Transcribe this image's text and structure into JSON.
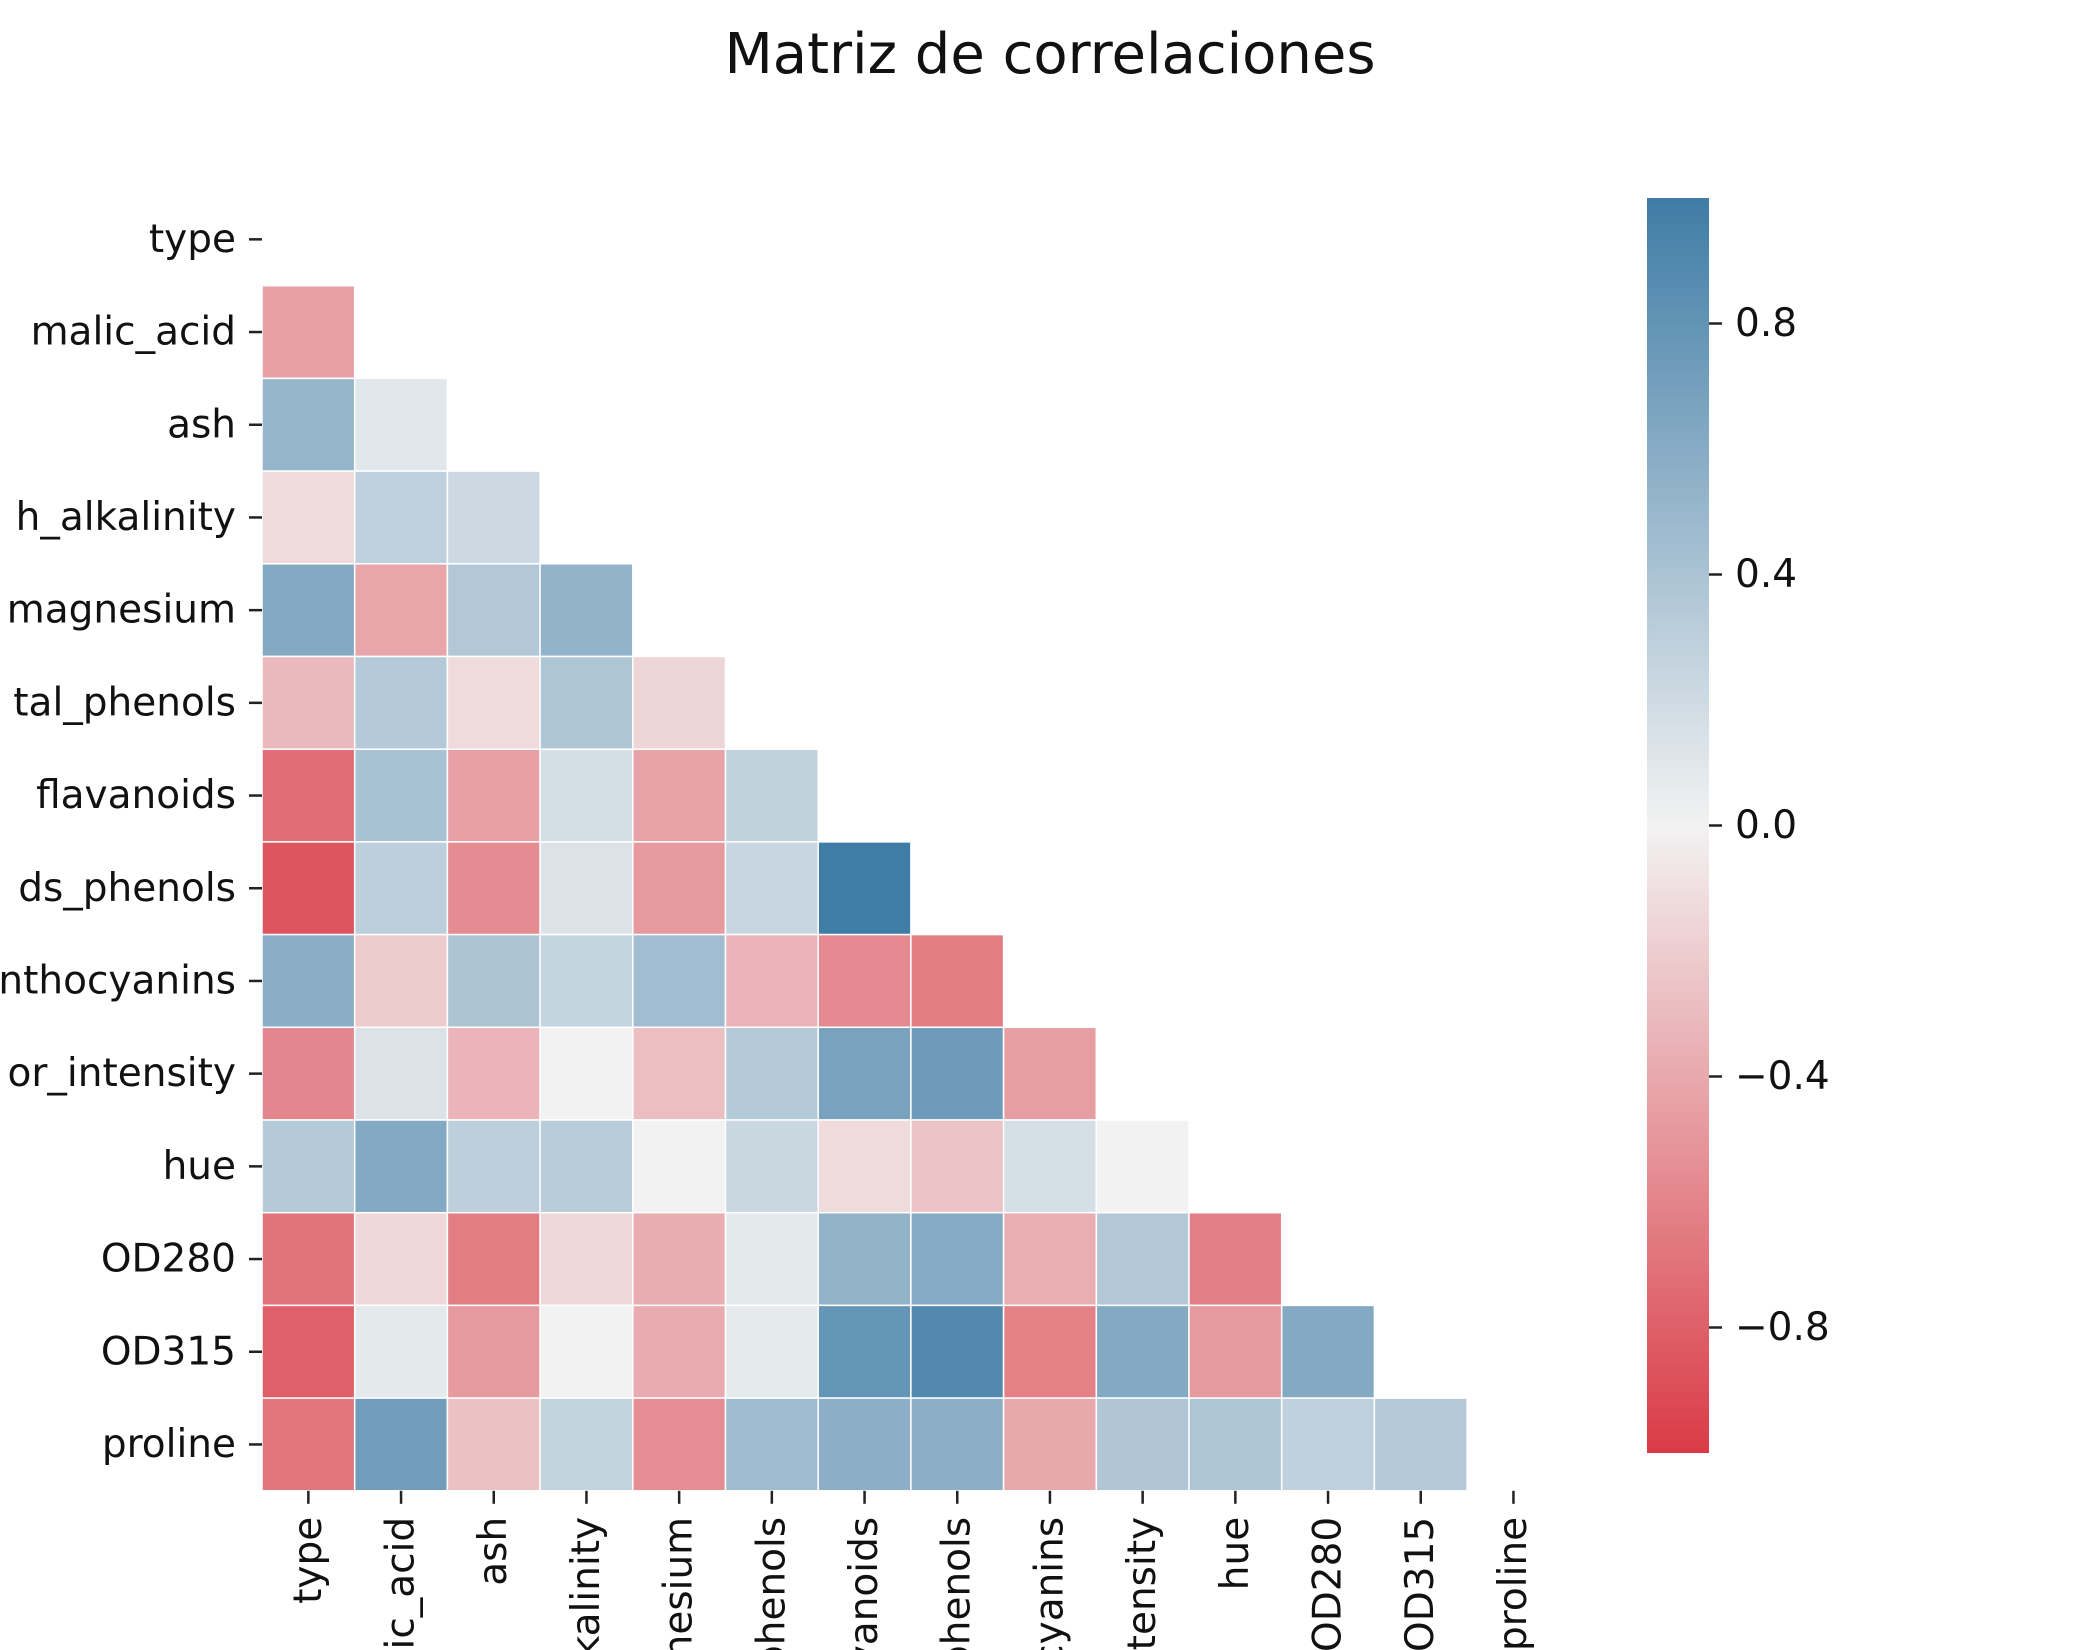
{
  "chart_data": {
    "type": "heatmap",
    "title": "Matriz de correlaciones",
    "xlabel": "",
    "ylabel": "",
    "row_tick_labels": [
      "type",
      "malic_acid",
      "ash",
      "h_alkalinity",
      "magnesium",
      "tal_phenols",
      "flavanoids",
      "ds_phenols",
      "nthocyanins",
      "or_intensity",
      "hue",
      "OD280",
      "OD315",
      "proline"
    ],
    "col_tick_labels": [
      "type",
      "alic_acid",
      "ash",
      "alkalinity",
      "gnesium",
      "_phenols",
      "avanoids",
      "_phenols",
      "ocyanins",
      "ntensity",
      "hue",
      "OD280",
      "OD315",
      "proline"
    ],
    "mask": "upper triangle including diagonal",
    "values": [
      [],
      [
        -0.44
      ],
      [
        0.52,
        0.09
      ],
      [
        -0.13,
        0.29,
        0.21
      ],
      [
        0.62,
        -0.42,
        0.36,
        0.53
      ],
      [
        -0.31,
        0.34,
        -0.13,
        0.38,
        -0.16
      ],
      [
        -0.72,
        0.41,
        -0.44,
        0.17,
        -0.43,
        0.27
      ],
      [
        -0.86,
        0.3,
        -0.56,
        0.13,
        -0.48,
        0.24,
        1.0
      ],
      [
        0.58,
        -0.22,
        0.39,
        0.25,
        0.45,
        -0.34,
        -0.57,
        -0.64
      ],
      [
        -0.59,
        0.13,
        -0.34,
        0.0,
        -0.28,
        0.34,
        0.68,
        0.74,
        -0.46
      ],
      [
        0.34,
        0.62,
        0.3,
        0.32,
        0.0,
        0.23,
        -0.13,
        -0.25,
        0.16,
        0.0
      ],
      [
        -0.69,
        -0.14,
        -0.64,
        -0.14,
        -0.38,
        0.08,
        0.53,
        0.61,
        -0.37,
        0.36,
        -0.63
      ],
      [
        -0.8,
        0.08,
        -0.48,
        0.0,
        -0.39,
        0.07,
        0.78,
        0.89,
        -0.62,
        0.62,
        -0.48,
        0.62
      ],
      [
        -0.68,
        0.72,
        -0.27,
        0.26,
        -0.55,
        0.46,
        0.57,
        0.57,
        -0.4,
        0.37,
        0.38,
        0.28,
        0.34
      ]
    ],
    "colorbar": {
      "vmin": -1.0,
      "vmax": 1.0,
      "ticks": [
        0.8,
        0.4,
        0.0,
        -0.4,
        -0.8
      ],
      "tick_labels": [
        "0.8",
        "0.4",
        "0.0",
        "−0.4",
        "−0.8"
      ],
      "negative_color": "#da3b46",
      "center_color": "#f2f2f2",
      "positive_color": "#3f7ca6"
    },
    "grid": false,
    "legend_placement": "right"
  }
}
